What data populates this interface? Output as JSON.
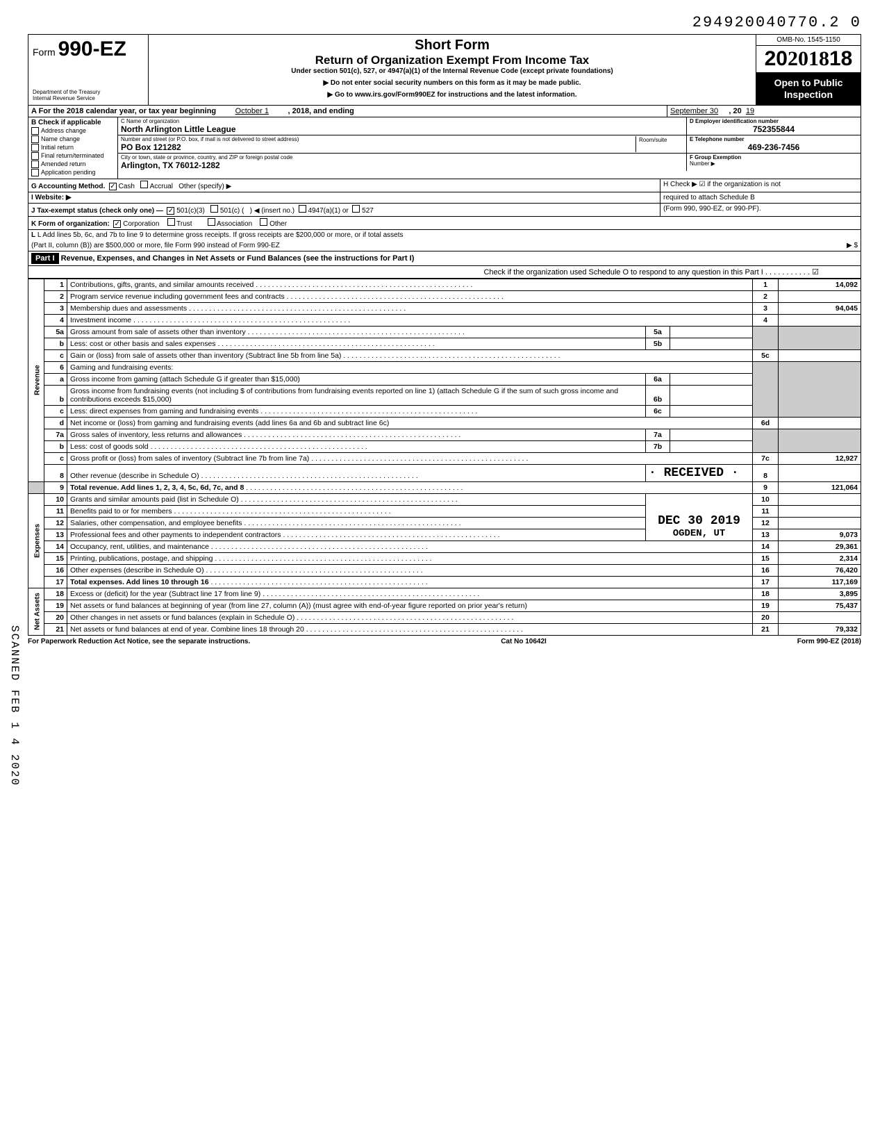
{
  "top_number": "294920040770.2  0",
  "omb": "OMB-No. 1545-1150",
  "year": "2018",
  "form_no_prefix": "Form",
  "form_no": "990-EZ",
  "dept1": "Department of the Treasury",
  "dept2": "Internal Revenue Service",
  "short_form": "Short Form",
  "return_title": "Return of Organization Exempt From Income Tax",
  "sub_title": "Under section 501(c), 527, or 4947(a)(1) of the Internal Revenue Code (except private foundations)",
  "instr1": "▶ Do not enter social security numbers on this form as it may be made public.",
  "instr2": "▶ Go to www.irs.gov/Form990EZ for instructions and the latest information.",
  "open_public1": "Open to Public",
  "open_public2": "Inspection",
  "rowA": {
    "label": "A For the 2018 calendar year, or tax year beginning",
    "begin": "October 1",
    "mid": ", 2018, and ending",
    "end_month": "September 30",
    "end_year_prefix": ", 20",
    "end_year": "19"
  },
  "B": {
    "header": "B Check if applicable",
    "items": [
      "Address change",
      "Name change",
      "Initial return",
      "Final return/terminated",
      "Amended return",
      "Application pending"
    ]
  },
  "C": {
    "label": "C Name of organization",
    "name": "North Arlington Little League",
    "street_label": "Number and street (or P.O. box, if mail is not delivered to street address)",
    "street": "PO Box 121282",
    "room_label": "Room/suite",
    "city_label": "City or town, state or province, country, and ZIP or foreign postal code",
    "city": "Arlington, TX 76012-1282"
  },
  "D": {
    "label": "D Employer identification number",
    "val": "752355844"
  },
  "E": {
    "label": "E Telephone number",
    "val": "469-236-7456"
  },
  "F": {
    "label": "F Group Exemption",
    "label2": "Number ▶"
  },
  "G": {
    "label": "G Accounting Method.",
    "cash": "Cash",
    "accrual": "Accrual",
    "other": "Other (specify) ▶"
  },
  "H": {
    "text1": "H Check ▶ ☑ if the organization is not",
    "text2": "required to attach Schedule B",
    "text3": "(Form 990, 990-EZ, or 990-PF)."
  },
  "I": "I Website: ▶",
  "J": {
    "label": "J Tax-exempt status (check only one) —",
    "o1": "501(c)(3)",
    "o2": "501(c) (",
    "o2b": ") ◀ (insert no.)",
    "o3": "4947(a)(1) or",
    "o4": "527"
  },
  "K": {
    "label": "K Form of organization:",
    "corp": "Corporation",
    "trust": "Trust",
    "assoc": "Association",
    "other": "Other"
  },
  "L": "L Add lines 5b, 6c, and 7b to line 9 to determine gross receipts. If gross receipts are $200,000 or more, or if total assets",
  "L2": "(Part II, column (B)) are $500,000 or more, file Form 990 instead of Form 990-EZ",
  "L_arrow": "▶  $",
  "part1": {
    "tag": "Part I",
    "title": "Revenue, Expenses, and Changes in Net Assets or Fund Balances (see the instructions for Part I)",
    "check": "Check if the organization used Schedule O to respond to any question in this Part I . . . . . . . . . . . ☑"
  },
  "side": {
    "rev": "Revenue",
    "exp": "Expenses",
    "net": "Net Assets"
  },
  "lines": {
    "1": {
      "d": "Contributions, gifts, grants, and similar amounts received",
      "v": "14,092"
    },
    "2": {
      "d": "Program service revenue including government fees and contracts",
      "v": ""
    },
    "3": {
      "d": "Membership dues and assessments",
      "v": "94,045"
    },
    "4": {
      "d": "Investment income",
      "v": ""
    },
    "5a": {
      "d": "Gross amount from sale of assets other than inventory"
    },
    "5b": {
      "d": "Less: cost or other basis and sales expenses"
    },
    "5c": {
      "d": "Gain or (loss) from sale of assets other than inventory (Subtract line 5b from line 5a)",
      "v": ""
    },
    "6": {
      "d": "Gaming and fundraising events:"
    },
    "6a": {
      "d": "Gross income from gaming (attach Schedule G if greater than $15,000)"
    },
    "6b": {
      "d": "Gross income from fundraising events (not including  $                     of contributions from fundraising events reported on line 1) (attach Schedule G if the sum of such gross income and contributions exceeds $15,000)"
    },
    "6c": {
      "d": "Less: direct expenses from gaming and fundraising events"
    },
    "6d": {
      "d": "Net income or (loss) from gaming and fundraising events (add lines 6a and 6b and subtract line 6c)",
      "v": ""
    },
    "7a": {
      "d": "Gross sales of inventory, less returns and allowances"
    },
    "7b": {
      "d": "Less: cost of goods sold"
    },
    "7c": {
      "d": "Gross profit or (loss) from sales of inventory (Subtract line 7b from line 7a)",
      "v": "12,927"
    },
    "8": {
      "d": "Other revenue (describe in Schedule O)",
      "v": ""
    },
    "9": {
      "d": "Total revenue. Add lines 1, 2, 3, 4, 5c, 6d, 7c, and 8",
      "v": "121,064"
    },
    "10": {
      "d": "Grants and similar amounts paid (list in Schedule O)",
      "v": ""
    },
    "11": {
      "d": "Benefits paid to or for members",
      "v": ""
    },
    "12": {
      "d": "Salaries, other compensation, and employee benefits",
      "v": ""
    },
    "13": {
      "d": "Professional fees and other payments to independent contractors",
      "v": "9,073"
    },
    "14": {
      "d": "Occupancy, rent, utilities, and maintenance",
      "v": "29,361"
    },
    "15": {
      "d": "Printing, publications, postage, and shipping",
      "v": "2,314"
    },
    "16": {
      "d": "Other expenses (describe in Schedule O)",
      "v": "76,420"
    },
    "17": {
      "d": "Total expenses. Add lines 10 through 16",
      "v": "117,169"
    },
    "18": {
      "d": "Excess or (deficit) for the year (Subtract line 17 from line 9)",
      "v": "3,895"
    },
    "19": {
      "d": "Net assets or fund balances at beginning of year (from line 27, column (A)) (must agree with end-of-year figure reported on prior year's return)",
      "v": "75,437"
    },
    "20": {
      "d": "Other changes in net assets or fund balances (explain in Schedule O)",
      "v": ""
    },
    "21": {
      "d": "Net assets or fund balances at end of year. Combine lines 18 through 20",
      "v": "79,332"
    }
  },
  "stamp": {
    "received": "· RECEIVED ·",
    "date": "DEC 30 2019",
    "ogden": "OGDEN, UT"
  },
  "footer": {
    "l": "For Paperwork Reduction Act Notice, see the separate instructions.",
    "c": "Cat No 10642I",
    "r": "Form 990-EZ (2018)"
  },
  "scanned": "SCANNED  FEB 1 4 2020"
}
